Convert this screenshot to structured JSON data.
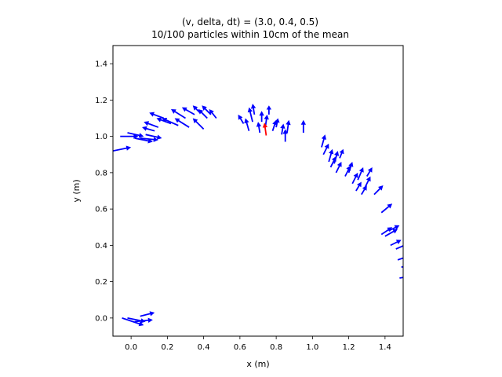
{
  "chart_data": {
    "type": "scatter",
    "title_line1": "(v, delta, dt) = (3.0, 0.4, 0.5)",
    "title_line2": "10/100 particles within 10cm of the mean",
    "xlabel": "x (m)",
    "ylabel": "y (m)",
    "xlim": [
      -0.1,
      1.5
    ],
    "ylim": [
      -0.1,
      1.5
    ],
    "xticks": [
      0.0,
      0.2,
      0.4,
      0.6,
      0.8,
      1.0,
      1.2,
      1.4
    ],
    "yticks": [
      0.0,
      0.2,
      0.4,
      0.6,
      0.8,
      1.0,
      1.2,
      1.4
    ],
    "xtick_labels": [
      "0.0",
      "0.2",
      "0.4",
      "0.6",
      "0.8",
      "1.0",
      "1.2",
      "1.4"
    ],
    "ytick_labels": [
      "0.0",
      "0.2",
      "0.4",
      "0.6",
      "0.8",
      "1.0",
      "1.2",
      "1.4"
    ],
    "grid": false,
    "arrow_color": "#0000ff",
    "mean_arrow_color": "#ff0000",
    "particles": [
      {
        "x": -0.05,
        "y": 0.0,
        "u": 0.12,
        "v": -0.04
      },
      {
        "x": 0.02,
        "y": -0.02,
        "u": 0.1,
        "v": 0.01
      },
      {
        "x": 0.05,
        "y": 0.01,
        "u": 0.08,
        "v": 0.02
      },
      {
        "x": -0.02,
        "y": 0.0,
        "u": 0.1,
        "v": -0.02
      },
      {
        "x": -0.1,
        "y": 0.92,
        "u": 0.1,
        "v": 0.02
      },
      {
        "x": -0.06,
        "y": 1.0,
        "u": 0.1,
        "v": 0.0
      },
      {
        "x": -0.02,
        "y": 1.02,
        "u": 0.09,
        "v": -0.02
      },
      {
        "x": 0.02,
        "y": 0.99,
        "u": 0.1,
        "v": -0.02
      },
      {
        "x": 0.05,
        "y": 0.99,
        "u": 0.1,
        "v": -0.01
      },
      {
        "x": 0.08,
        "y": 1.01,
        "u": 0.09,
        "v": -0.02
      },
      {
        "x": 0.13,
        "y": 1.03,
        "u": -0.07,
        "v": 0.02
      },
      {
        "x": 0.15,
        "y": 1.05,
        "u": -0.08,
        "v": 0.03
      },
      {
        "x": 0.18,
        "y": 1.1,
        "u": -0.08,
        "v": 0.03
      },
      {
        "x": 0.22,
        "y": 1.07,
        "u": -0.08,
        "v": 0.03
      },
      {
        "x": 0.26,
        "y": 1.06,
        "u": -0.09,
        "v": 0.04
      },
      {
        "x": 0.3,
        "y": 1.1,
        "u": -0.08,
        "v": 0.05
      },
      {
        "x": 0.32,
        "y": 1.05,
        "u": -0.08,
        "v": 0.05
      },
      {
        "x": 0.35,
        "y": 1.12,
        "u": -0.07,
        "v": 0.04
      },
      {
        "x": 0.38,
        "y": 1.13,
        "u": -0.04,
        "v": 0.04
      },
      {
        "x": 0.4,
        "y": 1.04,
        "u": -0.06,
        "v": 0.06
      },
      {
        "x": 0.42,
        "y": 1.1,
        "u": -0.05,
        "v": 0.05
      },
      {
        "x": 0.44,
        "y": 1.12,
        "u": -0.05,
        "v": 0.05
      },
      {
        "x": 0.47,
        "y": 1.1,
        "u": -0.04,
        "v": 0.05
      },
      {
        "x": 0.62,
        "y": 1.07,
        "u": -0.03,
        "v": 0.05
      },
      {
        "x": 0.65,
        "y": 1.03,
        "u": -0.02,
        "v": 0.07
      },
      {
        "x": 0.67,
        "y": 1.08,
        "u": -0.02,
        "v": 0.08
      },
      {
        "x": 0.68,
        "y": 1.12,
        "u": -0.01,
        "v": 0.06
      },
      {
        "x": 0.71,
        "y": 1.02,
        "u": -0.01,
        "v": 0.06
      },
      {
        "x": 0.72,
        "y": 1.08,
        "u": 0.0,
        "v": 0.06
      },
      {
        "x": 0.74,
        "y": 1.05,
        "u": 0.01,
        "v": 0.07
      },
      {
        "x": 0.76,
        "y": 1.12,
        "u": 0.0,
        "v": 0.05
      },
      {
        "x": 0.78,
        "y": 1.03,
        "u": 0.02,
        "v": 0.06
      },
      {
        "x": 0.8,
        "y": 1.05,
        "u": 0.01,
        "v": 0.05
      },
      {
        "x": 0.83,
        "y": 1.01,
        "u": 0.01,
        "v": 0.06
      },
      {
        "x": 0.85,
        "y": 0.97,
        "u": 0.0,
        "v": 0.07
      },
      {
        "x": 0.86,
        "y": 1.02,
        "u": 0.01,
        "v": 0.07
      },
      {
        "x": 0.95,
        "y": 1.02,
        "u": 0.0,
        "v": 0.07
      },
      {
        "x": 1.05,
        "y": 0.94,
        "u": 0.02,
        "v": 0.07
      },
      {
        "x": 1.06,
        "y": 0.9,
        "u": 0.03,
        "v": 0.06
      },
      {
        "x": 1.09,
        "y": 0.86,
        "u": 0.02,
        "v": 0.07
      },
      {
        "x": 1.1,
        "y": 0.83,
        "u": 0.03,
        "v": 0.06
      },
      {
        "x": 1.12,
        "y": 0.85,
        "u": 0.02,
        "v": 0.07
      },
      {
        "x": 1.13,
        "y": 0.8,
        "u": 0.03,
        "v": 0.06
      },
      {
        "x": 1.15,
        "y": 0.88,
        "u": 0.02,
        "v": 0.05
      },
      {
        "x": 1.18,
        "y": 0.78,
        "u": 0.03,
        "v": 0.06
      },
      {
        "x": 1.2,
        "y": 0.8,
        "u": 0.02,
        "v": 0.06
      },
      {
        "x": 1.22,
        "y": 0.74,
        "u": 0.03,
        "v": 0.06
      },
      {
        "x": 1.24,
        "y": 0.7,
        "u": 0.03,
        "v": 0.05
      },
      {
        "x": 1.25,
        "y": 0.76,
        "u": 0.03,
        "v": 0.07
      },
      {
        "x": 1.27,
        "y": 0.68,
        "u": 0.03,
        "v": 0.05
      },
      {
        "x": 1.29,
        "y": 0.72,
        "u": 0.03,
        "v": 0.06
      },
      {
        "x": 1.3,
        "y": 0.78,
        "u": 0.03,
        "v": 0.05
      },
      {
        "x": 1.34,
        "y": 0.68,
        "u": 0.05,
        "v": 0.05
      },
      {
        "x": 1.38,
        "y": 0.58,
        "u": 0.06,
        "v": 0.05
      },
      {
        "x": 1.38,
        "y": 0.46,
        "u": 0.06,
        "v": 0.04
      },
      {
        "x": 1.4,
        "y": 0.45,
        "u": 0.07,
        "v": 0.04
      },
      {
        "x": 1.42,
        "y": 0.48,
        "u": 0.06,
        "v": 0.03
      },
      {
        "x": 1.43,
        "y": 0.4,
        "u": 0.06,
        "v": 0.03
      },
      {
        "x": 1.46,
        "y": 0.38,
        "u": 0.07,
        "v": 0.03
      },
      {
        "x": 1.47,
        "y": 0.32,
        "u": 0.06,
        "v": 0.02
      },
      {
        "x": 1.49,
        "y": 0.28,
        "u": 0.05,
        "v": 0.01
      },
      {
        "x": 1.48,
        "y": 0.22,
        "u": 0.06,
        "v": 0.01
      }
    ],
    "mean_arrow": {
      "x": 0.745,
      "y": 1.005,
      "u": -0.01,
      "v": 0.07
    }
  }
}
